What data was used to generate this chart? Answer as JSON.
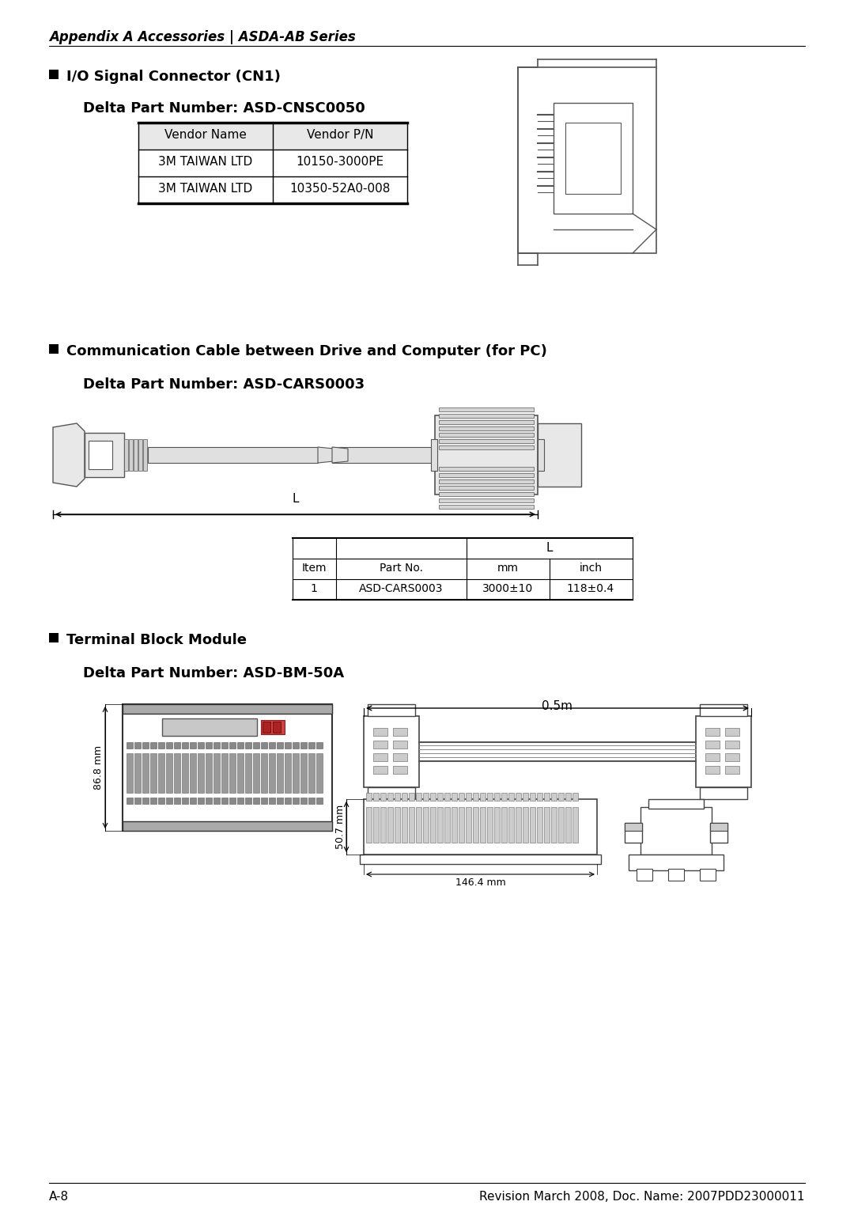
{
  "bg_color": "#ffffff",
  "header_text": "Appendix A Accessories | ASDA-AB Series",
  "section1_bullet": "I/O Signal Connector (CN1)",
  "section1_subtitle": "Delta Part Number: ASD-CNSC0050",
  "table1_headers": [
    "Vendor Name",
    "Vendor P/N"
  ],
  "table1_rows": [
    [
      "3M TAIWAN LTD",
      "10150-3000PE"
    ],
    [
      "3M TAIWAN LTD",
      "10350-52A0-008"
    ]
  ],
  "section2_bullet": "Communication Cable between Drive and Computer (for PC)",
  "section2_subtitle": "Delta Part Number: ASD-CARS0003",
  "table2_rows": [
    [
      "1",
      "ASD-CARS0003",
      "3000±10",
      "118±0.4"
    ]
  ],
  "section3_bullet": "Terminal Block Module",
  "section3_subtitle": "Delta Part Number: ASD-BM-50A",
  "label_86mm": "86.8 mm",
  "label_507mm": "50.7 mm",
  "label_1464mm": "146.4 mm",
  "label_05m": "0.5m",
  "label_L": "L",
  "footer_left": "A-8",
  "footer_right": "Revision March 2008, Doc. Name: 2007PDD23000011",
  "text_color": "#000000",
  "line_color": "#555555",
  "table_header_bg": "#e8e8e8"
}
